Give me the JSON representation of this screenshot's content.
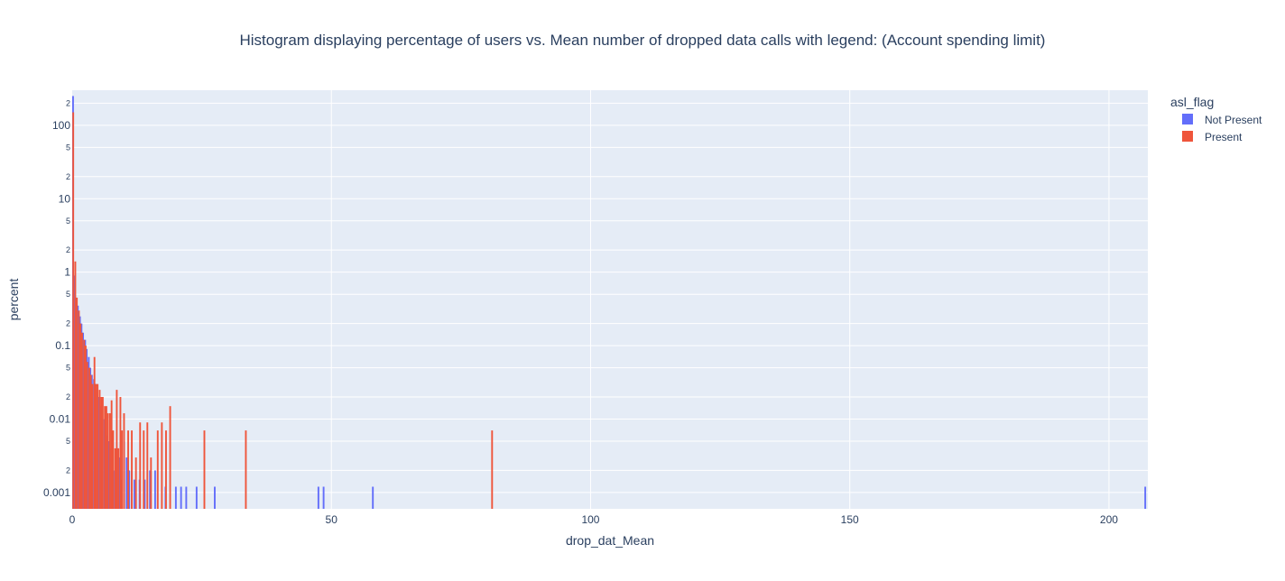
{
  "chart_data": {
    "type": "bar",
    "title": "Histogram displaying percentage of users vs. Mean number of dropped data calls with legend: (Account spending limit)",
    "xlabel": "drop_dat_Mean",
    "ylabel": "percent",
    "y_scale": "log",
    "xlim": [
      0,
      207.5
    ],
    "ylim": [
      0.0006,
      300
    ],
    "grid": true,
    "x_ticks": [
      "0",
      "50",
      "100",
      "150",
      "200"
    ],
    "x_tick_values": [
      0,
      50,
      100,
      150,
      200
    ],
    "y_major_ticks": [
      "0.001",
      "0.01",
      "0.1",
      "1",
      "10",
      "100"
    ],
    "y_major_values": [
      0.001,
      0.01,
      0.1,
      1,
      10,
      100
    ],
    "y_minor_ticks": [
      "2",
      "5"
    ],
    "legend": {
      "title": "asl_flag",
      "position": "top-right",
      "entries": [
        "Not Present",
        "Present"
      ]
    },
    "colors": {
      "Not Present": "#636efa",
      "Present": "#ef553b",
      "plot_bg": "#e5ecf6",
      "grid": "#ffffff"
    },
    "bin_width": 0.33,
    "series": [
      {
        "name": "Not Present",
        "x": [
          0.1,
          0.4,
          0.8,
          1.1,
          1.5,
          1.8,
          2.1,
          2.5,
          2.8,
          3.2,
          3.5,
          3.8,
          4.2,
          4.5,
          4.8,
          5.2,
          5.5,
          5.8,
          6.2,
          6.5,
          6.8,
          7.2,
          7.5,
          7.8,
          8.2,
          8.5,
          8.8,
          9.2,
          9.5,
          10.0,
          10.5,
          11.0,
          11.5,
          12.0,
          13.0,
          14.0,
          15.0,
          16.0,
          18.0,
          20.0,
          21.0,
          22.0,
          24.0,
          27.5,
          47.5,
          48.5,
          58.0,
          207.0
        ],
        "values": [
          250,
          0.9,
          0.45,
          0.35,
          0.25,
          0.2,
          0.15,
          0.12,
          0.09,
          0.07,
          0.05,
          0.04,
          0.035,
          0.03,
          0.025,
          0.02,
          0.015,
          0.012,
          0.01,
          0.008,
          0.006,
          0.005,
          0.004,
          0.003,
          0.002,
          0.0015,
          0.004,
          0.003,
          0.0015,
          0.005,
          0.003,
          0.002,
          0.002,
          0.0015,
          0.0015,
          0.0015,
          0.002,
          0.002,
          0.0012,
          0.0012,
          0.0012,
          0.0012,
          0.0012,
          0.0012,
          0.0012,
          0.0012,
          0.0012,
          0.0012
        ]
      },
      {
        "name": "Present",
        "x": [
          0.2,
          0.6,
          0.9,
          1.3,
          1.6,
          1.9,
          2.3,
          2.6,
          2.9,
          3.3,
          3.6,
          3.9,
          4.3,
          4.6,
          4.9,
          5.3,
          5.6,
          5.9,
          6.3,
          6.6,
          6.9,
          7.3,
          7.6,
          7.9,
          8.3,
          8.6,
          8.9,
          9.3,
          9.6,
          10.0,
          10.8,
          11.5,
          12.3,
          13.1,
          13.8,
          14.5,
          15.2,
          16.5,
          17.3,
          18.1,
          18.9,
          25.5,
          33.5,
          81.0
        ],
        "values": [
          150,
          1.4,
          0.45,
          0.3,
          0.2,
          0.15,
          0.12,
          0.1,
          0.06,
          0.05,
          0.04,
          0.03,
          0.07,
          0.03,
          0.03,
          0.025,
          0.02,
          0.02,
          0.015,
          0.015,
          0.012,
          0.012,
          0.018,
          0.007,
          0.004,
          0.025,
          0.004,
          0.02,
          0.007,
          0.012,
          0.007,
          0.007,
          0.003,
          0.009,
          0.007,
          0.009,
          0.003,
          0.007,
          0.009,
          0.007,
          0.015,
          0.007,
          0.007,
          0.007
        ]
      }
    ]
  }
}
